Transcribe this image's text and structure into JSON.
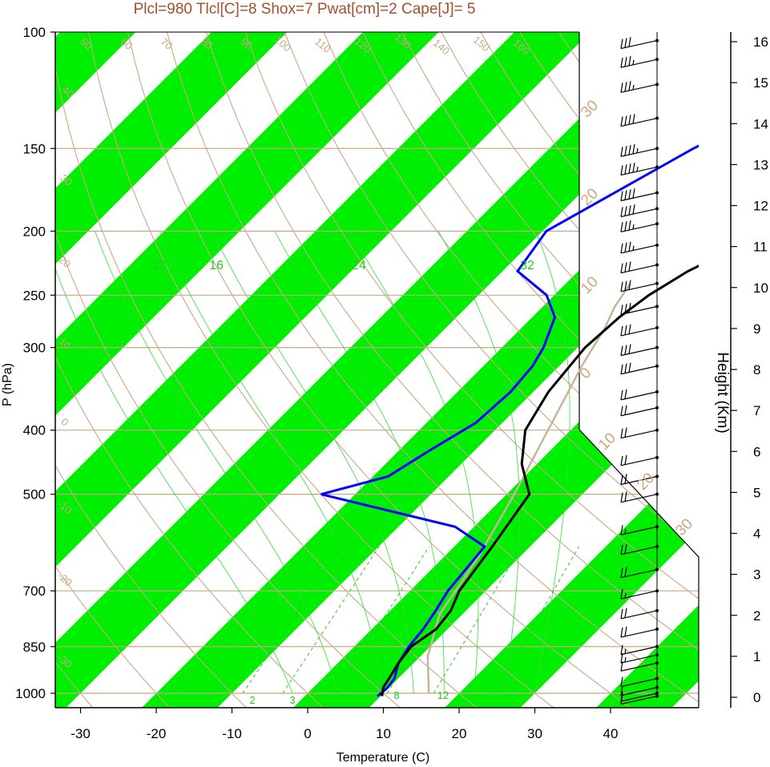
{
  "chart_data": {
    "type": "line",
    "title": "Plcl=980 Tlcl[C]=8 Shox=7 Pwat[cm]=2 Cape[J]= 5",
    "xlabel": "Temperature (C)",
    "ylabel": "P (hPa)",
    "y2label": "Height (Km)",
    "x_ticks": [
      "-30",
      "-20",
      "-10",
      "0",
      "10",
      "20",
      "30",
      "40"
    ],
    "y_ticks": [
      "100",
      "150",
      "200",
      "250",
      "300",
      "400",
      "500",
      "700",
      "850",
      "1000"
    ],
    "height_ticks": [
      "0",
      "1",
      "2",
      "3",
      "4",
      "5",
      "6",
      "7",
      "8",
      "9",
      "10",
      "11",
      "12",
      "13",
      "14",
      "15",
      "16"
    ],
    "xlim": [
      -33.5,
      52
    ],
    "ylim": [
      1050,
      100
    ],
    "skew_deg": 45,
    "dry_adiabat_labels": [
      "-30",
      "-20",
      "-10",
      "0",
      "10",
      "20",
      "30",
      "40",
      "50",
      "60",
      "70",
      "80",
      "90",
      "100",
      "110",
      "120",
      "130",
      "140",
      "150",
      "160"
    ],
    "isotherm_labels": [
      "30",
      "20",
      "10",
      "0",
      "10",
      "20",
      "30"
    ],
    "mixing_ratio_labels": [
      "2",
      "3",
      "8",
      "12",
      "12",
      "16",
      "24",
      "32"
    ],
    "temperature_profile": {
      "name": "Temperature",
      "color": "#000000",
      "points": [
        [
          10.2,
          1010
        ],
        [
          9.2,
          980
        ],
        [
          8.8,
          950
        ],
        [
          8.0,
          900
        ],
        [
          7.5,
          850
        ],
        [
          8.5,
          800
        ],
        [
          8.0,
          750
        ],
        [
          6.5,
          700
        ],
        [
          5.0,
          600
        ],
        [
          3.0,
          500
        ],
        [
          -2.0,
          450
        ],
        [
          -6.0,
          400
        ],
        [
          -8.0,
          350
        ],
        [
          -9.0,
          300
        ],
        [
          -8.5,
          270
        ],
        [
          -7.5,
          250
        ],
        [
          -5.5,
          230
        ],
        [
          0.0,
          200
        ],
        [
          4.0,
          175
        ],
        [
          7.0,
          160
        ],
        [
          10.0,
          150
        ],
        [
          13.0,
          130
        ],
        [
          15.0,
          115
        ],
        [
          15.5,
          103
        ]
      ]
    },
    "dewpoint_profile": {
      "name": "Dewpoint",
      "color": "#0000ff",
      "points": [
        [
          9.6,
          1010
        ],
        [
          9.8,
          980
        ],
        [
          9.5,
          950
        ],
        [
          8.0,
          900
        ],
        [
          7.2,
          850
        ],
        [
          6.8,
          800
        ],
        [
          6.0,
          750
        ],
        [
          5.0,
          700
        ],
        [
          4.0,
          600
        ],
        [
          -2.5,
          560
        ],
        [
          -24.5,
          500
        ],
        [
          -18.0,
          470
        ],
        [
          -16.0,
          430
        ],
        [
          -13.5,
          390
        ],
        [
          -13.0,
          350
        ],
        [
          -13.5,
          320
        ],
        [
          -14.5,
          300
        ],
        [
          -17.0,
          270
        ],
        [
          -21.0,
          250
        ],
        [
          -28.0,
          230
        ],
        [
          -29.5,
          200
        ],
        [
          -21.0,
          150
        ],
        [
          -12.0,
          120
        ],
        [
          -5.5,
          103
        ]
      ]
    },
    "parcel_profile": {
      "name": "Parcel",
      "color": "#c8b49a",
      "points": [
        [
          16.0,
          1000
        ],
        [
          11.0,
          880
        ],
        [
          7.0,
          760
        ],
        [
          4.5,
          620
        ],
        [
          1.0,
          500
        ],
        [
          -3.0,
          400
        ],
        [
          -7.0,
          320
        ],
        [
          -9.0,
          280
        ],
        [
          -10.5,
          260
        ],
        [
          -11.5,
          240
        ]
      ]
    },
    "wind_barbs": [
      {
        "p": 1010,
        "speed": 10
      },
      {
        "p": 1000,
        "speed": 10
      },
      {
        "p": 980,
        "speed": 10
      },
      {
        "p": 950,
        "speed": 10
      },
      {
        "p": 900,
        "speed": 10
      },
      {
        "p": 875,
        "speed": 15
      },
      {
        "p": 850,
        "speed": 15
      },
      {
        "p": 800,
        "speed": 20
      },
      {
        "p": 750,
        "speed": 20
      },
      {
        "p": 700,
        "speed": 15
      },
      {
        "p": 650,
        "speed": 20
      },
      {
        "p": 600,
        "speed": 20
      },
      {
        "p": 560,
        "speed": 15
      },
      {
        "p": 500,
        "speed": 20
      },
      {
        "p": 470,
        "speed": 20
      },
      {
        "p": 440,
        "speed": 20
      },
      {
        "p": 400,
        "speed": 20
      },
      {
        "p": 370,
        "speed": 20
      },
      {
        "p": 350,
        "speed": 20
      },
      {
        "p": 320,
        "speed": 30
      },
      {
        "p": 300,
        "speed": 30
      },
      {
        "p": 280,
        "speed": 30
      },
      {
        "p": 260,
        "speed": 30
      },
      {
        "p": 240,
        "speed": 30
      },
      {
        "p": 225,
        "speed": 30
      },
      {
        "p": 210,
        "speed": 35
      },
      {
        "p": 195,
        "speed": 35
      },
      {
        "p": 185,
        "speed": 40
      },
      {
        "p": 175,
        "speed": 40
      },
      {
        "p": 160,
        "speed": 45
      },
      {
        "p": 150,
        "speed": 45
      },
      {
        "p": 135,
        "speed": 40
      },
      {
        "p": 120,
        "speed": 35
      },
      {
        "p": 110,
        "speed": 35
      },
      {
        "p": 103,
        "speed": 30
      }
    ]
  }
}
